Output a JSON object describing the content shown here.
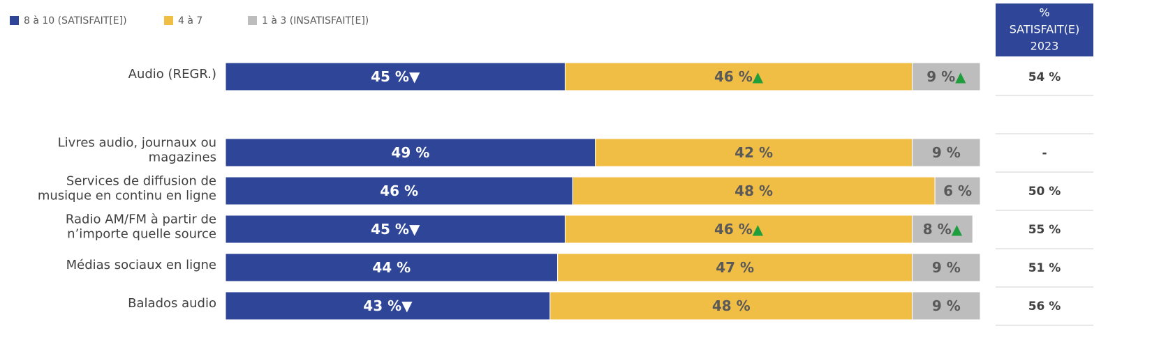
{
  "chart_data": {
    "type": "stacked-bar-horizontal",
    "categories": [
      "Audio (REGR.)",
      "Livres audio, journaux ou\nmagazines",
      "Services de diffusion de\nmusique en continu en ligne",
      "Radio AM/FM à partir de\nn’importe quelle source",
      "Médias sociaux en ligne",
      "Balados audio"
    ],
    "xlim": [
      0,
      100
    ],
    "up_color": "#1f9e3c",
    "down_color": "#ffffff",
    "series": [
      {
        "name": "8 à 10 (SATISFAIT[E])",
        "color": "#2e4598",
        "text_color": "#ffffff",
        "values": [
          45,
          49,
          46,
          45,
          44,
          43
        ],
        "value_labels": [
          "45 %",
          "49 %",
          "46 %",
          "45 %",
          "44 %",
          "43 %"
        ],
        "flags": [
          "▼",
          null,
          null,
          "▼",
          null,
          "▼"
        ]
      },
      {
        "name": "4 à 7",
        "color": "#f0bd45",
        "text_color": "#595959",
        "values": [
          46,
          42,
          48,
          46,
          47,
          48
        ],
        "value_labels": [
          "46 %",
          "42 %",
          "48 %",
          "46 %",
          "47 %",
          "48 %"
        ],
        "flags": [
          "▲",
          null,
          null,
          "▲",
          null,
          null
        ]
      },
      {
        "name": "1 à 3 (INSATISFAIT[E])",
        "color": "#bdbdbd",
        "text_color": "#595959",
        "values": [
          9,
          9,
          6,
          8,
          9,
          9
        ],
        "value_labels": [
          "9 %",
          "9 %",
          "6 %",
          "8 %",
          "9 %",
          "9 %"
        ],
        "flags": [
          "▲",
          null,
          null,
          "▲",
          null,
          null
        ]
      }
    ],
    "table": {
      "header": [
        "%",
        "SATISFAIT(E)",
        "2023"
      ],
      "header_color": "#2e4598",
      "values": [
        54,
        null,
        50,
        55,
        51,
        56
      ],
      "value_labels": [
        "54 %",
        "-",
        "50 %",
        "55 %",
        "51 %",
        "56 %"
      ]
    }
  }
}
